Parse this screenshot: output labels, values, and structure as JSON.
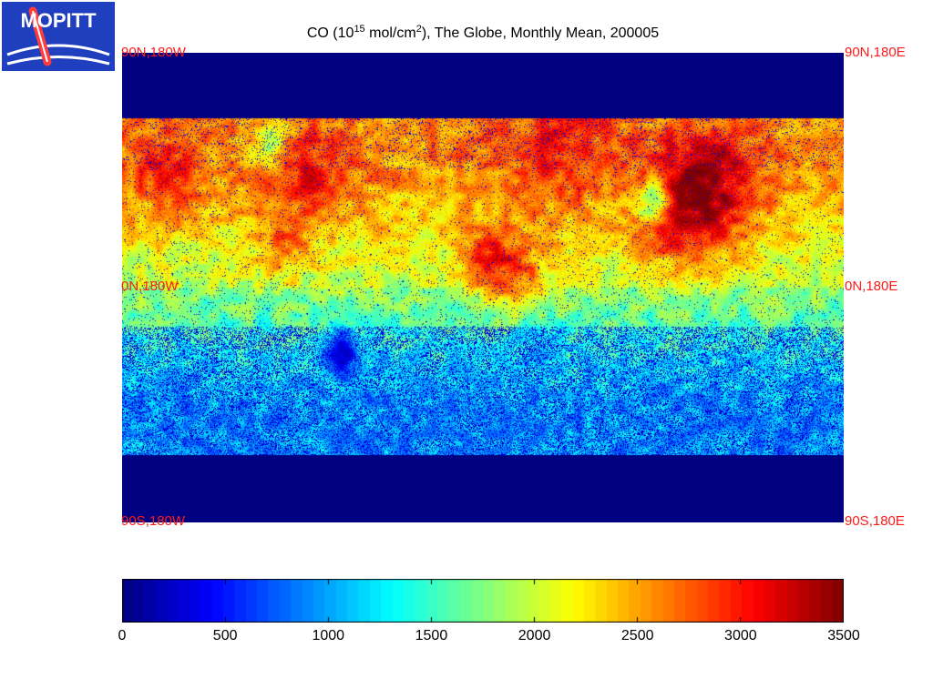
{
  "logo": {
    "text": "MOPITT",
    "icon": "mopitt-logo-icon"
  },
  "title": {
    "prefix": "CO (10",
    "exp1": "15",
    "middle": " mol/cm",
    "exp2": "2",
    "suffix": "), The Globe, Monthly Mean, 200005"
  },
  "corners": {
    "top_left": "90N,180W",
    "top_right": "90N,180E",
    "mid_left": "0N,180W",
    "mid_right": "0N,180E",
    "bottom_left": "90S,180W",
    "bottom_right": "90S,180E"
  },
  "colorbar": {
    "min": 0,
    "max": 3500,
    "ticks": [
      "0",
      "500",
      "1000",
      "1500",
      "2000",
      "2500",
      "3000",
      "3500"
    ],
    "colormap": "jet"
  },
  "colors": {
    "corner_label": "#ff1a1a",
    "no_data": "#000080",
    "logo_blue": "#1f3fbf"
  }
}
